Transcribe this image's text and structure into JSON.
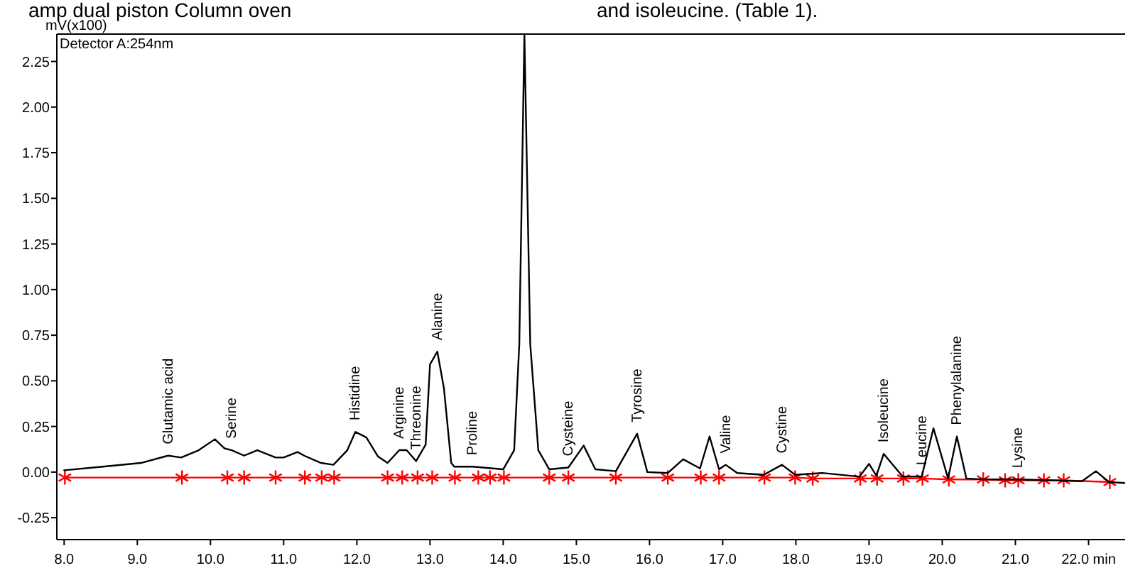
{
  "chart_data": {
    "type": "line",
    "ylabel": "mV(x100)",
    "title": "Detector A:254nm",
    "annotations": [
      "amp dual piston Column oven",
      "and isoleucine. (Table 1).",
      {
        "text": "Glutamic acid",
        "x": 9.42,
        "y": 0.09
      },
      {
        "text": "Serine",
        "x": 10.29,
        "y": 0.12
      },
      {
        "text": "Histidine",
        "x": 11.98,
        "y": 0.22
      },
      {
        "text": "Arginine",
        "x": 12.58,
        "y": 0.12
      },
      {
        "text": "Threonine",
        "x": 12.81,
        "y": 0.06
      },
      {
        "text": "Alanine",
        "x": 13.1,
        "y": 0.66
      },
      {
        "text": "Proline",
        "x": 13.58,
        "y": 0.03
      },
      {
        "text": "Cysteine",
        "x": 14.89,
        "y": 0.025
      },
      {
        "text": "Tyrosine",
        "x": 15.83,
        "y": 0.21
      },
      {
        "text": "Valine",
        "x": 17.04,
        "y": 0.04
      },
      {
        "text": "Cystine",
        "x": 17.81,
        "y": 0.04
      },
      {
        "text": "Isoleucine",
        "x": 19.2,
        "y": 0.1
      },
      {
        "text": "Leucine",
        "x": 19.72,
        "y": -0.025
      },
      {
        "text": "Phenylalanine",
        "x": 20.2,
        "y": 0.195
      },
      {
        "text": "Lysine",
        "x": 21.03,
        "y": -0.04
      }
    ],
    "xlim": [
      7.9,
      22.5
    ],
    "ylim": [
      -0.37,
      2.4
    ],
    "xticks": [
      {
        "value": 8,
        "label": "8.0"
      },
      {
        "value": 9,
        "label": "9.0"
      },
      {
        "value": 10,
        "label": "10.0"
      },
      {
        "value": 11,
        "label": "11.0"
      },
      {
        "value": 12,
        "label": "12.0"
      },
      {
        "value": 13,
        "label": "13.0"
      },
      {
        "value": 14,
        "label": "14.0"
      },
      {
        "value": 15,
        "label": "15.0"
      },
      {
        "value": 16,
        "label": "16.0"
      },
      {
        "value": 17,
        "label": "17.0"
      },
      {
        "value": 18,
        "label": "18.0"
      },
      {
        "value": 19,
        "label": "19.0"
      },
      {
        "value": 20,
        "label": "20.0"
      },
      {
        "value": 21,
        "label": "21.0"
      },
      {
        "value": 22,
        "label": "22.0 min"
      }
    ],
    "yticks": [
      {
        "value": -0.25,
        "label": "-0.25"
      },
      {
        "value": 0,
        "label": "0.00"
      },
      {
        "value": 0.25,
        "label": "0.25"
      },
      {
        "value": 0.5,
        "label": "0.50"
      },
      {
        "value": 0.75,
        "label": "0.75"
      },
      {
        "value": 1,
        "label": "1.00"
      },
      {
        "value": 1.25,
        "label": "1.25"
      },
      {
        "value": 1.5,
        "label": "1.50"
      },
      {
        "value": 1.75,
        "label": "1.75"
      },
      {
        "value": 2,
        "label": "2.00"
      },
      {
        "value": 2.25,
        "label": "2.25"
      }
    ],
    "grid": false,
    "series": [
      {
        "color": "#000000",
        "marker": "none",
        "line_style": "solid",
        "x": [
          8.0,
          8.53,
          9.05,
          9.42,
          9.6,
          9.84,
          10.06,
          10.19,
          10.29,
          10.46,
          10.64,
          10.89,
          11.0,
          11.19,
          11.28,
          11.51,
          11.68,
          11.87,
          11.98,
          12.13,
          12.29,
          12.42,
          12.58,
          12.68,
          12.81,
          12.94,
          13.0,
          13.1,
          13.19,
          13.29,
          13.33,
          13.58,
          14.0,
          14.15,
          14.22,
          14.29,
          14.37,
          14.48,
          14.63,
          14.89,
          15.1,
          15.26,
          15.54,
          15.83,
          15.97,
          16.25,
          16.46,
          16.69,
          16.82,
          16.95,
          17.04,
          17.2,
          17.56,
          17.81,
          17.99,
          18.36,
          18.87,
          19.0,
          19.1,
          19.2,
          19.46,
          19.72,
          19.88,
          20.08,
          20.2,
          20.33,
          20.55,
          21.03,
          21.91,
          22.1,
          22.28,
          22.49
        ],
        "values": [
          0.01,
          0.03,
          0.05,
          0.09,
          0.08,
          0.12,
          0.18,
          0.13,
          0.12,
          0.09,
          0.12,
          0.08,
          0.08,
          0.11,
          0.09,
          0.05,
          0.04,
          0.12,
          0.22,
          0.19,
          0.085,
          0.05,
          0.12,
          0.12,
          0.06,
          0.15,
          0.59,
          0.66,
          0.46,
          0.05,
          0.03,
          0.03,
          0.015,
          0.12,
          0.7,
          2.4,
          0.7,
          0.12,
          0.015,
          0.025,
          0.145,
          0.015,
          0.005,
          0.21,
          0.0,
          -0.005,
          0.07,
          0.02,
          0.195,
          0.015,
          0.04,
          -0.005,
          -0.015,
          0.04,
          -0.015,
          -0.005,
          -0.025,
          0.045,
          -0.02,
          0.1,
          -0.025,
          -0.025,
          0.24,
          -0.035,
          0.195,
          -0.035,
          -0.04,
          -0.04,
          -0.05,
          0.005,
          -0.055,
          -0.06
        ]
      },
      {
        "color": "#ff0000",
        "marker": "cross",
        "line_style": "solid",
        "x": [
          8.01,
          9.61,
          10.23,
          10.46,
          10.89,
          11.29,
          11.52,
          11.69,
          12.42,
          12.62,
          12.83,
          13.03,
          13.34,
          13.66,
          13.82,
          14.01,
          14.63,
          14.89,
          15.54,
          16.25,
          16.7,
          16.95,
          17.57,
          17.99,
          18.23,
          18.88,
          19.11,
          19.47,
          19.73,
          20.09,
          20.56,
          20.86,
          21.04,
          21.39,
          21.66,
          22.29
        ],
        "values": [
          -0.03,
          -0.03,
          -0.03,
          -0.03,
          -0.03,
          -0.03,
          -0.03,
          -0.03,
          -0.03,
          -0.03,
          -0.03,
          -0.03,
          -0.03,
          -0.03,
          -0.03,
          -0.03,
          -0.03,
          -0.03,
          -0.03,
          -0.03,
          -0.03,
          -0.03,
          -0.03,
          -0.03,
          -0.035,
          -0.035,
          -0.035,
          -0.035,
          -0.035,
          -0.04,
          -0.04,
          -0.045,
          -0.045,
          -0.045,
          -0.045,
          -0.055
        ]
      }
    ]
  }
}
